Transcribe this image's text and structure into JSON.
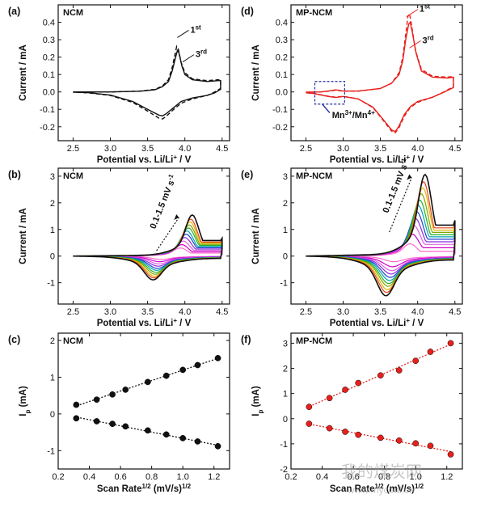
{
  "chart_data": [
    {
      "id": "a",
      "type": "line",
      "panel_label": "(a)",
      "title": "NCM",
      "xlabel": "Potential vs. Li/Li+ / V",
      "ylabel": "Current / mA",
      "xlim": [
        2.3,
        4.6
      ],
      "ylim": [
        -0.28,
        0.5
      ],
      "xticks": [
        "2.5",
        "3.0",
        "3.5",
        "4.0",
        "4.5"
      ],
      "yticks": [
        "-0.2",
        "-0.1",
        "0.0",
        "0.1",
        "0.2",
        "0.3",
        "0.4"
      ],
      "annotations": [
        {
          "text": "1st",
          "x": 4.03,
          "y": 0.34
        },
        {
          "text": "3rd",
          "x": 4.1,
          "y": 0.2
        }
      ],
      "series": [
        {
          "label": "1st",
          "color": "#111111",
          "dash": "5,3",
          "points": [
            [
              2.5,
              -0.001
            ],
            [
              3.0,
              0.0
            ],
            [
              3.4,
              0.005
            ],
            [
              3.6,
              0.015
            ],
            [
              3.7,
              0.035
            ],
            [
              3.78,
              0.07
            ],
            [
              3.83,
              0.14
            ],
            [
              3.87,
              0.22
            ],
            [
              3.89,
              0.262
            ],
            [
              3.91,
              0.25
            ],
            [
              3.95,
              0.17
            ],
            [
              4.0,
              0.11
            ],
            [
              4.1,
              0.075
            ],
            [
              4.3,
              0.065
            ],
            [
              4.45,
              0.07
            ],
            [
              4.48,
              0.07
            ],
            [
              4.48,
              0.02
            ],
            [
              4.4,
              0.0
            ],
            [
              4.3,
              -0.02
            ],
            [
              4.1,
              -0.04
            ],
            [
              3.95,
              -0.065
            ],
            [
              3.85,
              -0.1
            ],
            [
              3.75,
              -0.14
            ],
            [
              3.7,
              -0.155
            ],
            [
              3.65,
              -0.15
            ],
            [
              3.5,
              -0.11
            ],
            [
              3.3,
              -0.06
            ],
            [
              3.0,
              -0.02
            ],
            [
              2.7,
              -0.005
            ],
            [
              2.5,
              -0.002
            ]
          ]
        },
        {
          "label": "3rd",
          "color": "#111111",
          "dash": "",
          "points": [
            [
              2.5,
              0.0
            ],
            [
              3.0,
              0.0
            ],
            [
              3.4,
              0.004
            ],
            [
              3.6,
              0.013
            ],
            [
              3.7,
              0.03
            ],
            [
              3.78,
              0.06
            ],
            [
              3.83,
              0.12
            ],
            [
              3.87,
              0.19
            ],
            [
              3.9,
              0.238
            ],
            [
              3.92,
              0.225
            ],
            [
              3.96,
              0.15
            ],
            [
              4.0,
              0.1
            ],
            [
              4.1,
              0.07
            ],
            [
              4.3,
              0.06
            ],
            [
              4.45,
              0.065
            ],
            [
              4.48,
              0.065
            ],
            [
              4.48,
              0.015
            ],
            [
              4.4,
              -0.005
            ],
            [
              4.3,
              -0.02
            ],
            [
              4.1,
              -0.035
            ],
            [
              3.95,
              -0.055
            ],
            [
              3.85,
              -0.09
            ],
            [
              3.75,
              -0.125
            ],
            [
              3.7,
              -0.138
            ],
            [
              3.65,
              -0.133
            ],
            [
              3.5,
              -0.1
            ],
            [
              3.3,
              -0.055
            ],
            [
              3.0,
              -0.018
            ],
            [
              2.7,
              -0.004
            ],
            [
              2.5,
              -0.001
            ]
          ]
        }
      ]
    },
    {
      "id": "d",
      "type": "line",
      "panel_label": "(d)",
      "title": "MP-NCM",
      "xlabel": "Potential vs. Li/Li+ / V",
      "ylabel": "Current / mA",
      "xlim": [
        2.3,
        4.6
      ],
      "ylim": [
        -0.28,
        0.5
      ],
      "xticks": [
        "2.5",
        "3.0",
        "3.5",
        "4.0",
        "4.5"
      ],
      "yticks": [
        "-0.2",
        "-0.1",
        "0.0",
        "0.1",
        "0.2",
        "0.3",
        "0.4"
      ],
      "annotations": [
        {
          "text": "1st",
          "x": 3.98,
          "y": 0.46
        },
        {
          "text": "3rd",
          "x": 4.02,
          "y": 0.28
        },
        {
          "text": "Mn3+/Mn4+",
          "x": 2.85,
          "y": -0.15
        }
      ],
      "series": [
        {
          "label": "1st",
          "color": "#e8201c",
          "dash": "5,3",
          "points": [
            [
              2.5,
              -0.002
            ],
            [
              2.7,
              0.0
            ],
            [
              2.8,
              0.004
            ],
            [
              2.9,
              0.01
            ],
            [
              3.0,
              0.004
            ],
            [
              3.2,
              0.004
            ],
            [
              3.5,
              0.02
            ],
            [
              3.65,
              0.05
            ],
            [
              3.75,
              0.11
            ],
            [
              3.8,
              0.2
            ],
            [
              3.84,
              0.33
            ],
            [
              3.87,
              0.435
            ],
            [
              3.89,
              0.45
            ],
            [
              3.92,
              0.38
            ],
            [
              3.97,
              0.24
            ],
            [
              4.05,
              0.13
            ],
            [
              4.2,
              0.09
            ],
            [
              4.4,
              0.085
            ],
            [
              4.48,
              0.09
            ],
            [
              4.48,
              0.03
            ],
            [
              4.35,
              0.0
            ],
            [
              4.2,
              -0.03
            ],
            [
              4.0,
              -0.06
            ],
            [
              3.9,
              -0.09
            ],
            [
              3.82,
              -0.14
            ],
            [
              3.75,
              -0.205
            ],
            [
              3.7,
              -0.235
            ],
            [
              3.65,
              -0.225
            ],
            [
              3.55,
              -0.17
            ],
            [
              3.4,
              -0.09
            ],
            [
              3.2,
              -0.04
            ],
            [
              3.0,
              -0.025
            ],
            [
              2.9,
              -0.03
            ],
            [
              2.8,
              -0.024
            ],
            [
              2.6,
              -0.008
            ],
            [
              2.5,
              -0.004
            ]
          ]
        },
        {
          "label": "3rd",
          "color": "#e8201c",
          "dash": "",
          "points": [
            [
              2.5,
              -0.001
            ],
            [
              2.7,
              0.0
            ],
            [
              2.8,
              0.005
            ],
            [
              2.9,
              0.012
            ],
            [
              3.0,
              0.005
            ],
            [
              3.2,
              0.005
            ],
            [
              3.5,
              0.02
            ],
            [
              3.65,
              0.05
            ],
            [
              3.75,
              0.1
            ],
            [
              3.8,
              0.18
            ],
            [
              3.84,
              0.3
            ],
            [
              3.88,
              0.39
            ],
            [
              3.9,
              0.4
            ],
            [
              3.93,
              0.34
            ],
            [
              3.98,
              0.22
            ],
            [
              4.05,
              0.12
            ],
            [
              4.2,
              0.085
            ],
            [
              4.4,
              0.08
            ],
            [
              4.48,
              0.085
            ],
            [
              4.48,
              0.025
            ],
            [
              4.35,
              -0.002
            ],
            [
              4.2,
              -0.03
            ],
            [
              4.0,
              -0.055
            ],
            [
              3.9,
              -0.085
            ],
            [
              3.82,
              -0.13
            ],
            [
              3.75,
              -0.195
            ],
            [
              3.7,
              -0.228
            ],
            [
              3.65,
              -0.218
            ],
            [
              3.55,
              -0.165
            ],
            [
              3.4,
              -0.088
            ],
            [
              3.2,
              -0.04
            ],
            [
              3.0,
              -0.026
            ],
            [
              2.9,
              -0.032
            ],
            [
              2.8,
              -0.026
            ],
            [
              2.6,
              -0.009
            ],
            [
              2.5,
              -0.005
            ]
          ]
        }
      ]
    },
    {
      "id": "b",
      "type": "line",
      "panel_label": "(b)",
      "title": "NCM",
      "xlabel": "Potential vs. Li/Li+ / V",
      "ylabel": "Current / mA",
      "xlim": [
        2.3,
        4.6
      ],
      "ylim": [
        -1.8,
        3.3
      ],
      "xticks": [
        "2.5",
        "3.0",
        "3.5",
        "4.0",
        "4.5"
      ],
      "yticks": [
        "-1",
        "0",
        "1",
        "2",
        "3"
      ],
      "annotations": [
        {
          "text": "0.1-1.5 mV s-1",
          "x": 3.8,
          "y": 1.0
        }
      ],
      "cv_family": {
        "scan_rates_mV_s": [
          0.1,
          0.2,
          0.3,
          0.4,
          0.5,
          0.6,
          0.7,
          0.8,
          0.9,
          1.0,
          1.5
        ],
        "anodic_peak_mA": [
          0.3,
          0.42,
          0.55,
          0.68,
          0.8,
          0.92,
          1.03,
          1.14,
          1.25,
          1.35,
          1.5
        ],
        "anodic_peak_V": [
          3.94,
          3.96,
          3.98,
          4.0,
          4.02,
          4.03,
          4.05,
          4.06,
          4.07,
          4.08,
          4.1
        ],
        "cathodic_peak_mA": [
          -0.12,
          -0.2,
          -0.28,
          -0.36,
          -0.44,
          -0.51,
          -0.58,
          -0.65,
          -0.72,
          -0.78,
          -0.85
        ],
        "cathodic_peak_V": [
          3.68,
          3.66,
          3.65,
          3.64,
          3.63,
          3.62,
          3.61,
          3.6,
          3.59,
          3.58,
          3.57
        ],
        "colors": [
          "#ff66cc",
          "#cc00cc",
          "#e060e0",
          "#8a2be2",
          "#1f40cc",
          "#00a6b0",
          "#26b026",
          "#7da600",
          "#e0b800",
          "#e8401a",
          "#111111"
        ]
      }
    },
    {
      "id": "e",
      "type": "line",
      "panel_label": "(e)",
      "title": "MP-NCM",
      "xlabel": "Potential vs. Li/Li+ / V",
      "ylabel": "Current / mA",
      "xlim": [
        2.3,
        4.6
      ],
      "ylim": [
        -1.8,
        3.3
      ],
      "xticks": [
        "2.5",
        "3.0",
        "3.5",
        "4.0",
        "4.5"
      ],
      "yticks": [
        "-1",
        "0",
        "1",
        "2",
        "3"
      ],
      "annotations": [
        {
          "text": "0.1-1.5 mV s-1",
          "x": 3.8,
          "y": 1.6
        }
      ],
      "cv_family": {
        "scan_rates_mV_s": [
          0.1,
          0.2,
          0.3,
          0.4,
          0.5,
          0.6,
          0.7,
          0.8,
          0.9,
          1.0,
          1.5
        ],
        "anodic_peak_mA": [
          0.45,
          0.8,
          1.12,
          1.38,
          1.62,
          1.85,
          2.05,
          2.28,
          2.5,
          2.72,
          2.98
        ],
        "anodic_peak_V": [
          3.9,
          3.93,
          3.95,
          3.97,
          3.99,
          4.01,
          4.03,
          4.05,
          4.07,
          4.08,
          4.1
        ],
        "cathodic_peak_mA": [
          -0.2,
          -0.38,
          -0.52,
          -0.64,
          -0.76,
          -0.87,
          -0.98,
          -1.08,
          -1.2,
          -1.3,
          -1.42
        ],
        "cathodic_peak_V": [
          3.68,
          3.66,
          3.65,
          3.64,
          3.63,
          3.62,
          3.61,
          3.6,
          3.59,
          3.58,
          3.57
        ],
        "colors": [
          "#ff66cc",
          "#cc00cc",
          "#e060e0",
          "#8a2be2",
          "#1f40cc",
          "#00a6b0",
          "#26b026",
          "#7da600",
          "#e0b800",
          "#e8401a",
          "#111111"
        ]
      }
    },
    {
      "id": "c",
      "type": "scatter",
      "panel_label": "(c)",
      "title": "NCM",
      "xlabel": "Scan Rate1/2 (mV/s)1/2",
      "ylabel": "Ip (mA)",
      "xlim": [
        0.2,
        1.3
      ],
      "ylim": [
        -1.5,
        2.2
      ],
      "xticks": [
        "0.2",
        "0.4",
        "0.6",
        "0.8",
        "1.0",
        "1.2"
      ],
      "yticks": [
        "-1",
        "0",
        "1",
        "2"
      ],
      "color": "#111111",
      "series": [
        {
          "name": "anodic",
          "x": [
            0.316,
            0.447,
            0.548,
            0.632,
            0.775,
            0.894,
            1.0,
            1.095,
            1.225
          ],
          "y": [
            0.25,
            0.39,
            0.53,
            0.66,
            0.87,
            1.04,
            1.2,
            1.33,
            1.52
          ]
        },
        {
          "name": "cathodic",
          "x": [
            0.316,
            0.447,
            0.548,
            0.632,
            0.775,
            0.894,
            1.0,
            1.095,
            1.225
          ],
          "y": [
            -0.12,
            -0.2,
            -0.27,
            -0.34,
            -0.45,
            -0.56,
            -0.66,
            -0.75,
            -0.88
          ]
        }
      ]
    },
    {
      "id": "f",
      "type": "scatter",
      "panel_label": "(f)",
      "title": "MP-NCM",
      "xlabel": "Scan Rate1/2 (mV/s)1/2",
      "ylabel": "Ip (mA)",
      "xlim": [
        0.2,
        1.3
      ],
      "ylim": [
        -2.0,
        3.4
      ],
      "xticks": [
        "0.2",
        "0.4",
        "0.6",
        "0.8",
        "1.0",
        "1.2"
      ],
      "yticks": [
        "-2",
        "-1",
        "0",
        "1",
        "2",
        "3"
      ],
      "color": "#e8201c",
      "series": [
        {
          "name": "anodic",
          "x": [
            0.316,
            0.447,
            0.548,
            0.632,
            0.775,
            0.894,
            1.0,
            1.095,
            1.225
          ],
          "y": [
            0.47,
            0.82,
            1.15,
            1.42,
            1.72,
            1.92,
            2.3,
            2.66,
            3.0
          ]
        },
        {
          "name": "cathodic",
          "x": [
            0.316,
            0.447,
            0.548,
            0.632,
            0.775,
            0.894,
            1.0,
            1.095,
            1.225
          ],
          "y": [
            -0.2,
            -0.38,
            -0.52,
            -0.64,
            -0.76,
            -0.87,
            -0.98,
            -1.08,
            -1.42
          ]
        }
      ]
    }
  ],
  "watermark": {
    "text": "我的煤炭网",
    "url": "www.mycoal.cn"
  }
}
